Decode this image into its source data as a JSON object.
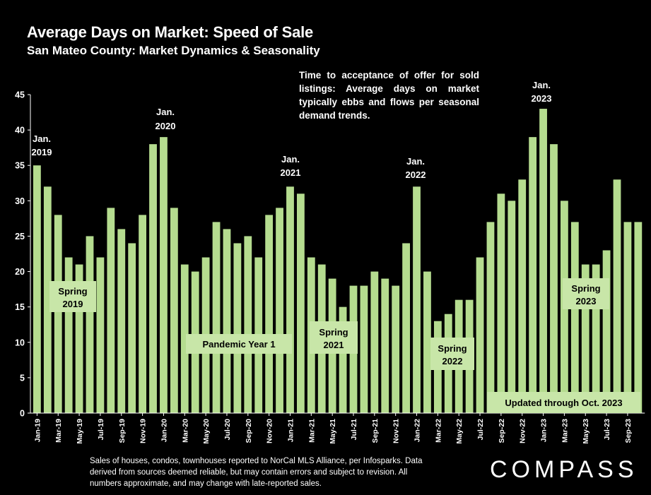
{
  "header": {
    "title": "Average Days on Market:  Speed of Sale",
    "subtitle": "San Mateo County: Market Dynamics & Seasonality"
  },
  "note": "Time to acceptance of offer for sold listings: Average days on market typically ebbs and flows per seasonal demand trends.",
  "footnote": "Sales of houses, condos, townhouses reported to NorCal MLS Alliance, per Infosparks. Data derived from sources deemed reliable, but may contain errors and subject to revision. All numbers approximate, and may change with late-reported sales.",
  "logo": "COMPASS",
  "colors": {
    "bar": "#b5dc8f",
    "box": "#c8e6a8",
    "background": "#000000",
    "text": "#ffffff"
  },
  "chart_data": {
    "type": "bar",
    "title": "Average Days on Market:  Speed of Sale",
    "subtitle": "San Mateo County: Market Dynamics & Seasonality",
    "xlabel": "",
    "ylabel": "",
    "ylim": [
      0,
      45
    ],
    "yticks": [
      0,
      5,
      10,
      15,
      20,
      25,
      30,
      35,
      40,
      45
    ],
    "grid": false,
    "categories": [
      "Jan-19",
      "Feb-19",
      "Mar-19",
      "Apr-19",
      "May-19",
      "Jun-19",
      "Jul-19",
      "Aug-19",
      "Sep-19",
      "Oct-19",
      "Nov-19",
      "Dec-19",
      "Jan-20",
      "Feb-20",
      "Mar-20",
      "Apr-20",
      "May-20",
      "Jun-20",
      "Jul-20",
      "Aug-20",
      "Sep-20",
      "Oct-20",
      "Nov-20",
      "Dec-20",
      "Jan-21",
      "Feb-21",
      "Mar-21",
      "Apr-21",
      "May-21",
      "Jun-21",
      "Jul-21",
      "Aug-21",
      "Sep-21",
      "Oct-21",
      "Nov-21",
      "Dec-21",
      "Jan-22",
      "Feb-22",
      "Mar-22",
      "Apr-22",
      "May-22",
      "Jun-22",
      "Jul-22",
      "Aug-22",
      "Sep-22",
      "Oct-22",
      "Nov-22",
      "Dec-22",
      "Jan-23",
      "Feb-23",
      "Mar-23",
      "Apr-23",
      "May-23",
      "Jun-23",
      "Jul-23",
      "Aug-23",
      "Sep-23",
      "Oct-23"
    ],
    "tick_labels": [
      "Jan-19",
      "Mar-19",
      "May-19",
      "Jul-19",
      "Sep-19",
      "Nov-19",
      "Jan-20",
      "Mar-20",
      "May-20",
      "Jul-20",
      "Sep-20",
      "Nov-20",
      "Jan-21",
      "Mar-21",
      "May-21",
      "Jul-21",
      "Sep-21",
      "Nov-21",
      "Jan-22",
      "Mar-22",
      "May-22",
      "Jul-22",
      "Sep-22",
      "Nov-22",
      "Jan-23",
      "Mar-23",
      "May-23",
      "Jul-23",
      "Sep-23"
    ],
    "values": [
      35,
      32,
      28,
      22,
      21,
      25,
      22,
      29,
      26,
      24,
      28,
      38,
      39,
      29,
      21,
      20,
      22,
      27,
      26,
      24,
      25,
      22,
      28,
      29,
      32,
      31,
      22,
      21,
      19,
      15,
      18,
      18,
      20,
      19,
      18,
      24,
      32,
      20,
      13,
      14,
      16,
      16,
      22,
      27,
      31,
      30,
      33,
      39,
      43,
      38,
      30,
      27,
      21,
      21,
      23,
      33,
      27,
      27
    ],
    "annotations": [
      {
        "line1": "Jan.",
        "line2": "2019",
        "index": 0
      },
      {
        "line1": "Jan.",
        "line2": "2020",
        "index": 12
      },
      {
        "line1": "Jan.",
        "line2": "2021",
        "index": 24
      },
      {
        "line1": "Jan.",
        "line2": "2022",
        "index": 36
      },
      {
        "line1": "Jan.",
        "line2": "2023",
        "index": 48
      }
    ],
    "labels": [
      {
        "line1": "Spring",
        "line2": "2019"
      },
      {
        "line1": "Pandemic Year 1",
        "line2": ""
      },
      {
        "line1": "Spring",
        "line2": "2021"
      },
      {
        "line1": "Spring",
        "line2": "2022"
      },
      {
        "line1": "Spring",
        "line2": "2023"
      },
      {
        "line1": "Updated through Oct. 2023",
        "line2": ""
      }
    ]
  }
}
